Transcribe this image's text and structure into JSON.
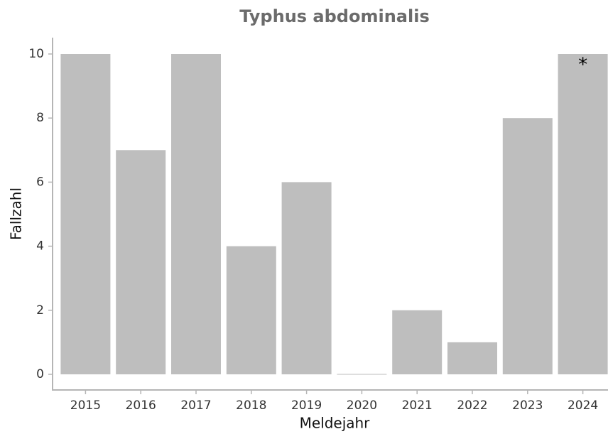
{
  "chart_data": {
    "type": "bar",
    "title": "Typhus abdominalis",
    "x_label": "Meldejahr",
    "y_label": "Fallzahl",
    "categories": [
      "2015",
      "2016",
      "2017",
      "2018",
      "2019",
      "2020",
      "2021",
      "2022",
      "2023",
      "2024"
    ],
    "values": [
      10,
      7,
      10,
      4,
      6,
      0,
      2,
      1,
      8,
      10
    ],
    "color": "#bebebe",
    "annotation": "*",
    "ylim": [
      -0.5,
      10.5
    ],
    "yticks": [
      0,
      2,
      4,
      6,
      8,
      10
    ],
    "grid": false
  }
}
